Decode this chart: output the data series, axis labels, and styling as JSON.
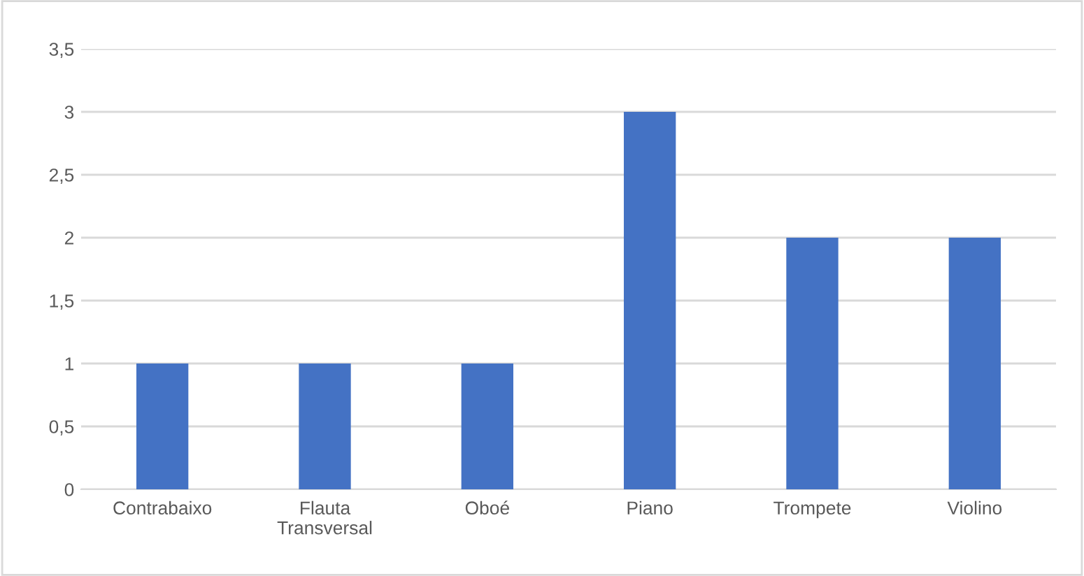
{
  "chart_data": {
    "type": "bar",
    "categories": [
      "Contrabaixo",
      "Flauta\nTransversal",
      "Oboé",
      "Piano",
      "Trompete",
      "Violino"
    ],
    "values": [
      1,
      1,
      1,
      3,
      2,
      2
    ],
    "color": "#4472c4",
    "ylim": [
      0,
      3.5
    ],
    "yticks": [
      0,
      {
        "value": 0.5,
        "label": "0,5"
      },
      1,
      {
        "value": 1.5,
        "label": "1,5"
      },
      2,
      {
        "value": 2.5,
        "label": "2,5"
      },
      3,
      {
        "value": 3.5,
        "label": "3,5"
      }
    ],
    "grid": "y"
  }
}
